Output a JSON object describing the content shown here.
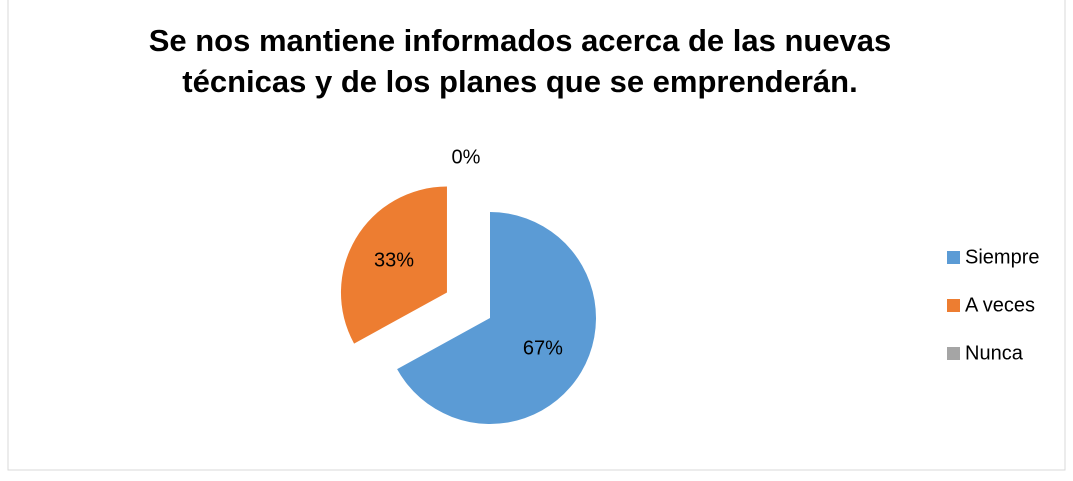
{
  "chart_data": {
    "type": "pie",
    "title": "Se nos mantiene informados acerca de las nuevas técnicas y de los planes que se emprenderán.",
    "categories": [
      "Siempre",
      "A veces",
      "Nunca"
    ],
    "values": [
      67,
      33,
      0
    ],
    "value_labels": [
      "67%",
      "33%",
      "0%"
    ],
    "colors": [
      "#5b9bd5",
      "#ed7d31",
      "#a5a5a5"
    ],
    "exploded": [
      false,
      true,
      false
    ],
    "legend": "right"
  }
}
